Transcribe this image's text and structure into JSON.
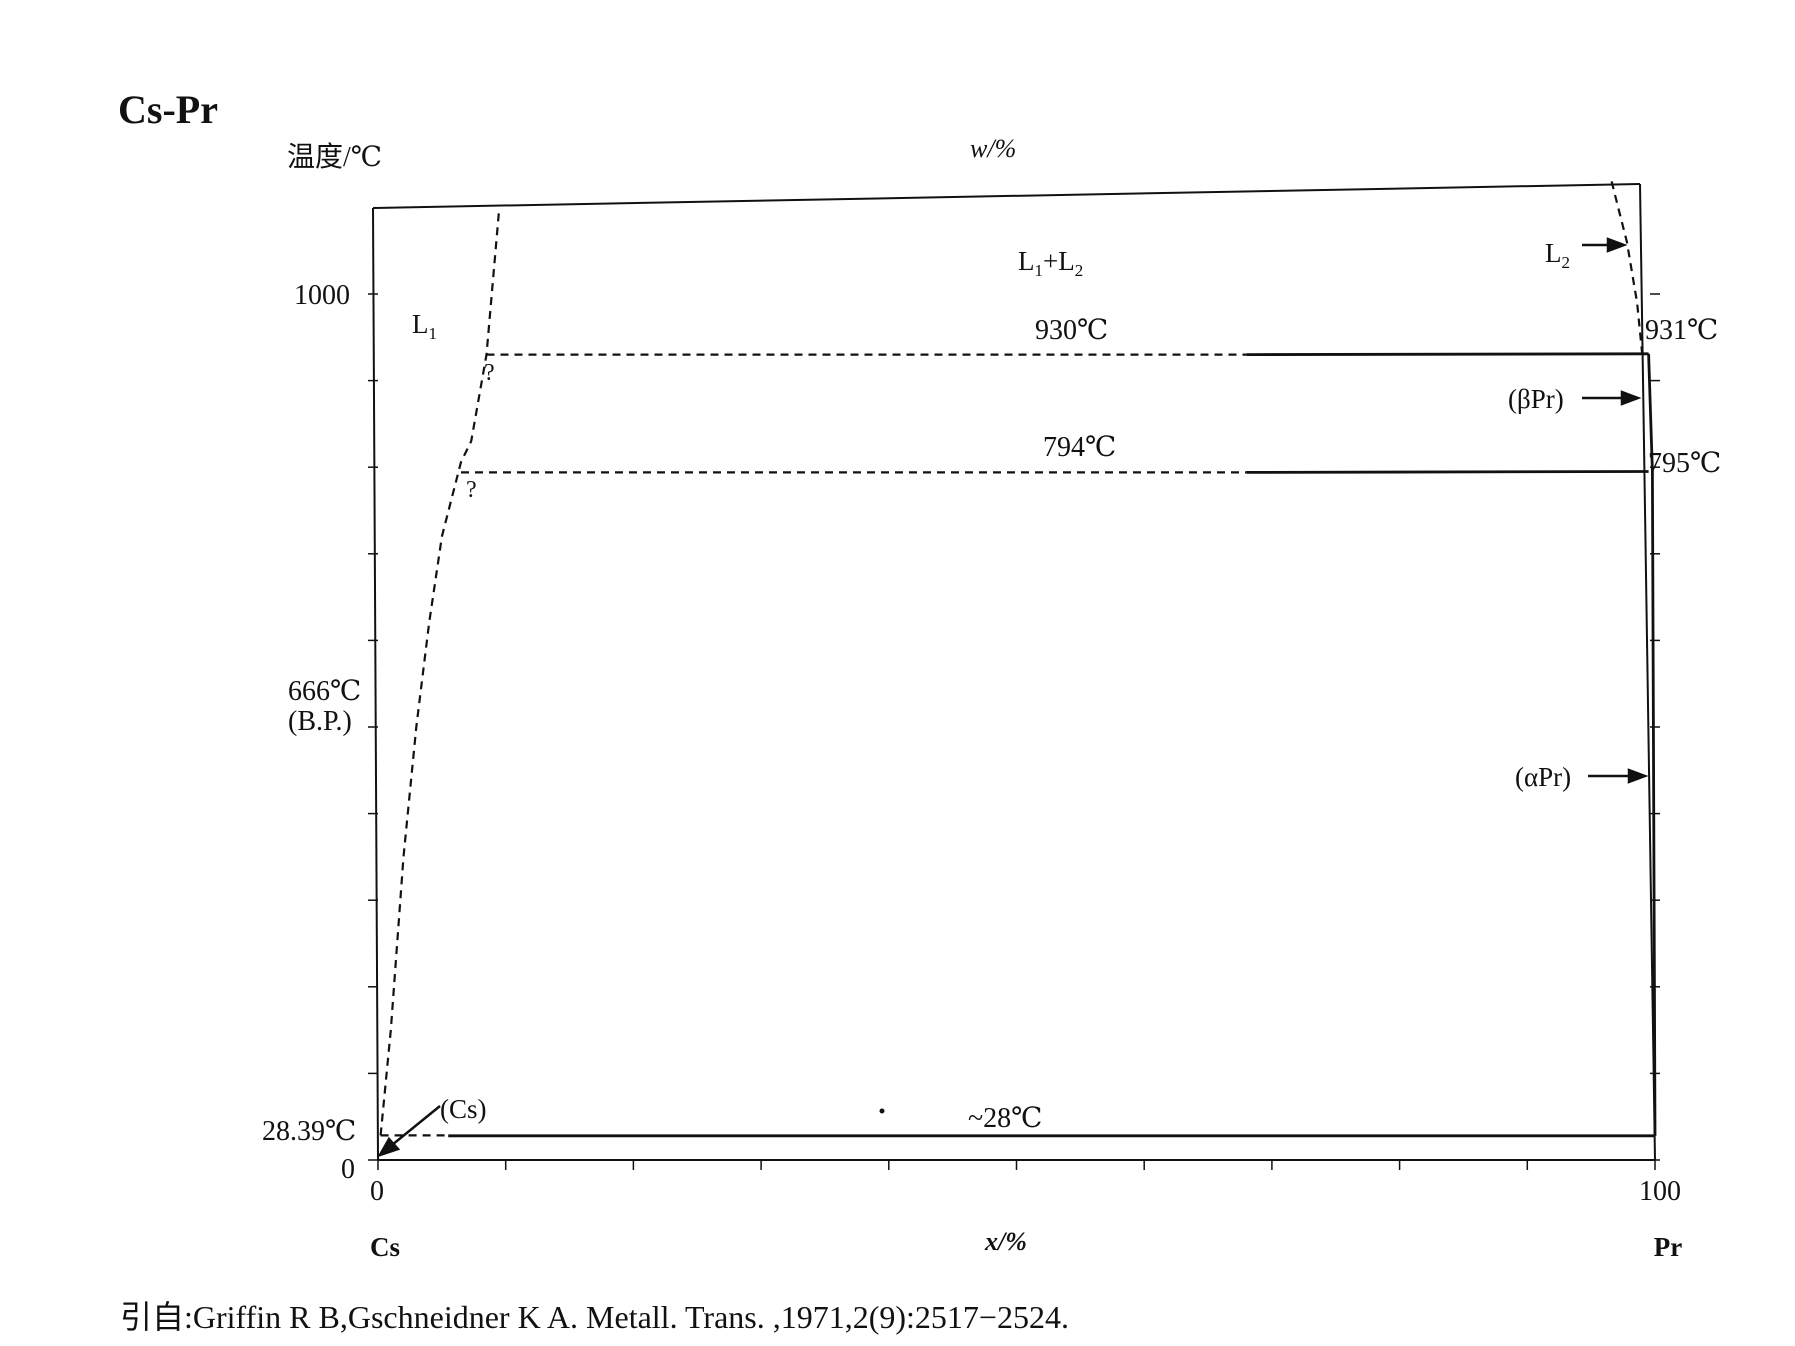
{
  "chart_data": {
    "type": "line",
    "title": "Cs-Pr",
    "ylabel": "温度/℃",
    "top_axis_label": "w/%",
    "xlabel": "x/%",
    "xlim": [
      0,
      100
    ],
    "ylim": [
      0,
      1100
    ],
    "x_tick_labels": [
      "0",
      "100"
    ],
    "y_tick_labels": [
      "0",
      "1000"
    ],
    "end_labels": {
      "left": "Cs",
      "right": "Pr"
    },
    "phase_labels": {
      "L1": "L",
      "L1_sub": "1",
      "L1L2_a": "L",
      "L1L2_a_sub": "1",
      "L1L2_plus": "+L",
      "L1L2_b_sub": "2",
      "L2": "L",
      "L2_sub": "2",
      "beta_pr": "(βPr)",
      "alpha_pr": "(αPr)",
      "cs": "(Cs)",
      "question": "?"
    },
    "annotations": {
      "bp_temp": "666℃",
      "bp_note": "(B.P.)",
      "cs_melt": "28.39℃",
      "monotectic_930": "930℃",
      "pr_melt": "931℃",
      "monotectic_794": "794℃",
      "pr_transform": "795℃",
      "eutectic": "~28℃"
    },
    "series": [
      {
        "style": "dashed",
        "x": [
          0.2,
          1,
          2,
          3,
          4,
          5,
          6.5,
          7.3,
          8.5,
          9.5
        ],
        "y": [
          28.39,
          150,
          350,
          500,
          620,
          720,
          806,
          830,
          930,
          1100
        ]
      },
      {
        "style": "dashed",
        "x": [
          96.6,
          97.8,
          98.6,
          99.0
        ],
        "y": [
          1130,
          1060,
          990,
          931
        ]
      },
      {
        "style": "dashed",
        "x": [
          8.5,
          68
        ],
        "y": [
          930,
          930
        ]
      },
      {
        "style": "solid",
        "x": [
          68,
          99.5
        ],
        "y": [
          930,
          931
        ]
      },
      {
        "style": "dashed",
        "x": [
          6.5,
          68
        ],
        "y": [
          794,
          794
        ]
      },
      {
        "style": "solid",
        "x": [
          68,
          99.5
        ],
        "y": [
          794,
          795
        ]
      },
      {
        "style": "solid",
        "x": [
          99.5,
          99.8,
          100
        ],
        "y": [
          931,
          795,
          28
        ]
      },
      {
        "style": "dashed",
        "x": [
          0.2,
          5.5
        ],
        "y": [
          28.39,
          28.39
        ]
      },
      {
        "style": "solid",
        "x": [
          5.5,
          100
        ],
        "y": [
          28,
          28
        ]
      }
    ]
  },
  "citation": "引自:Griffin R B,Gschneidner K A. Metall. Trans. ,1971,2(9):2517−2524."
}
